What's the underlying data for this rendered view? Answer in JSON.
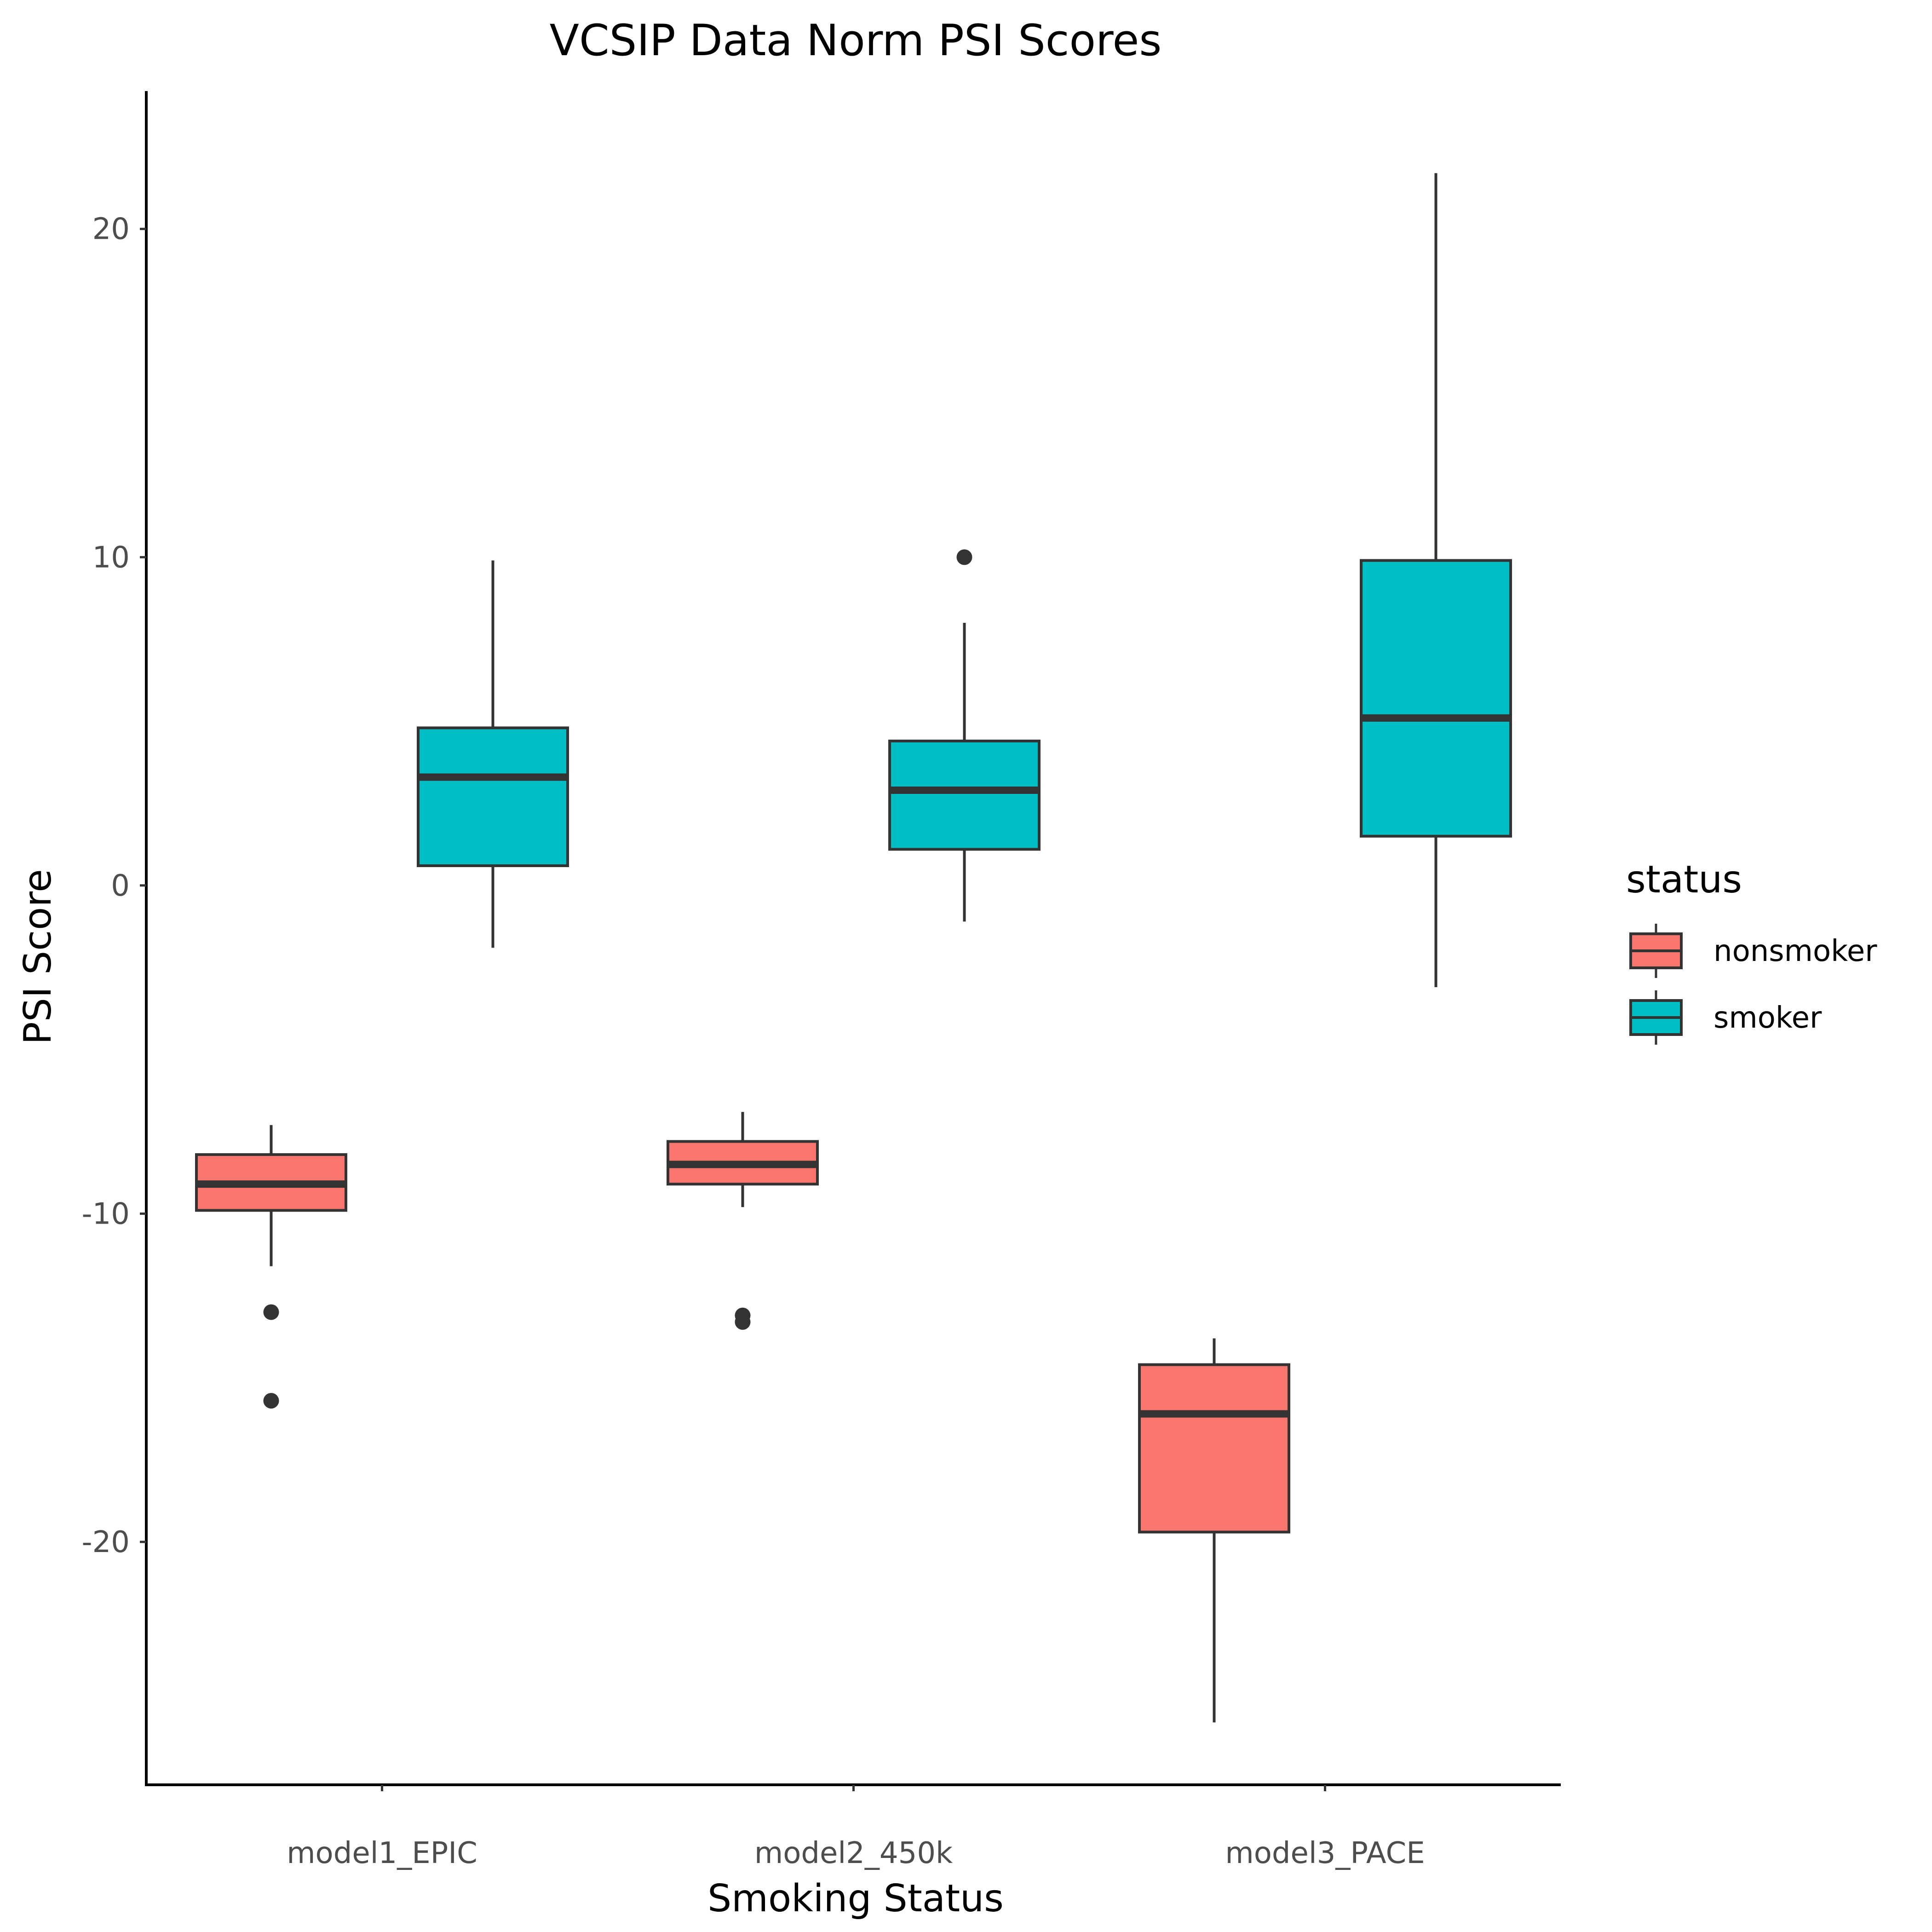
{
  "chart_data": {
    "type": "box",
    "title": "VCSIP Data Norm PSI Scores",
    "xlabel": "Smoking Status",
    "ylabel": "PSI Score",
    "ylim": [
      -27.4,
      24.2
    ],
    "yticks": [
      20,
      10,
      0,
      -10,
      -20
    ],
    "ytick_labels": [
      "20",
      "10",
      "0",
      "-10",
      "-20"
    ],
    "categories": [
      "model1_EPIC",
      "model2_450k",
      "model3_PACE"
    ],
    "grid": false,
    "legend": {
      "title": "status",
      "position": "right"
    },
    "series": [
      {
        "name": "nonsmoker",
        "color": "#F8766D",
        "boxes": [
          {
            "category": "model1_EPIC",
            "whisker_low": -11.6,
            "q1": -9.9,
            "median": -9.1,
            "q3": -8.2,
            "whisker_high": -7.3,
            "outliers": [
              -13.0,
              -15.7
            ]
          },
          {
            "category": "model2_450k",
            "whisker_low": -9.8,
            "q1": -9.1,
            "median": -8.5,
            "q3": -7.8,
            "whisker_high": -6.9,
            "outliers": [
              -13.1,
              -13.3
            ]
          },
          {
            "category": "model3_PACE",
            "whisker_low": -25.5,
            "q1": -19.7,
            "median": -16.1,
            "q3": -14.6,
            "whisker_high": -13.8,
            "outliers": []
          }
        ]
      },
      {
        "name": "smoker",
        "color": "#00BFC4",
        "boxes": [
          {
            "category": "model1_EPIC",
            "whisker_low": -1.9,
            "q1": 0.6,
            "median": 3.3,
            "q3": 4.8,
            "whisker_high": 9.9,
            "outliers": []
          },
          {
            "category": "model2_450k",
            "whisker_low": -1.1,
            "q1": 1.1,
            "median": 2.9,
            "q3": 4.4,
            "whisker_high": 8.0,
            "outliers": [
              10.0
            ]
          },
          {
            "category": "model3_PACE",
            "whisker_low": -3.1,
            "q1": 1.5,
            "median": 5.1,
            "q3": 9.9,
            "whisker_high": 21.7,
            "outliers": []
          }
        ]
      }
    ]
  }
}
